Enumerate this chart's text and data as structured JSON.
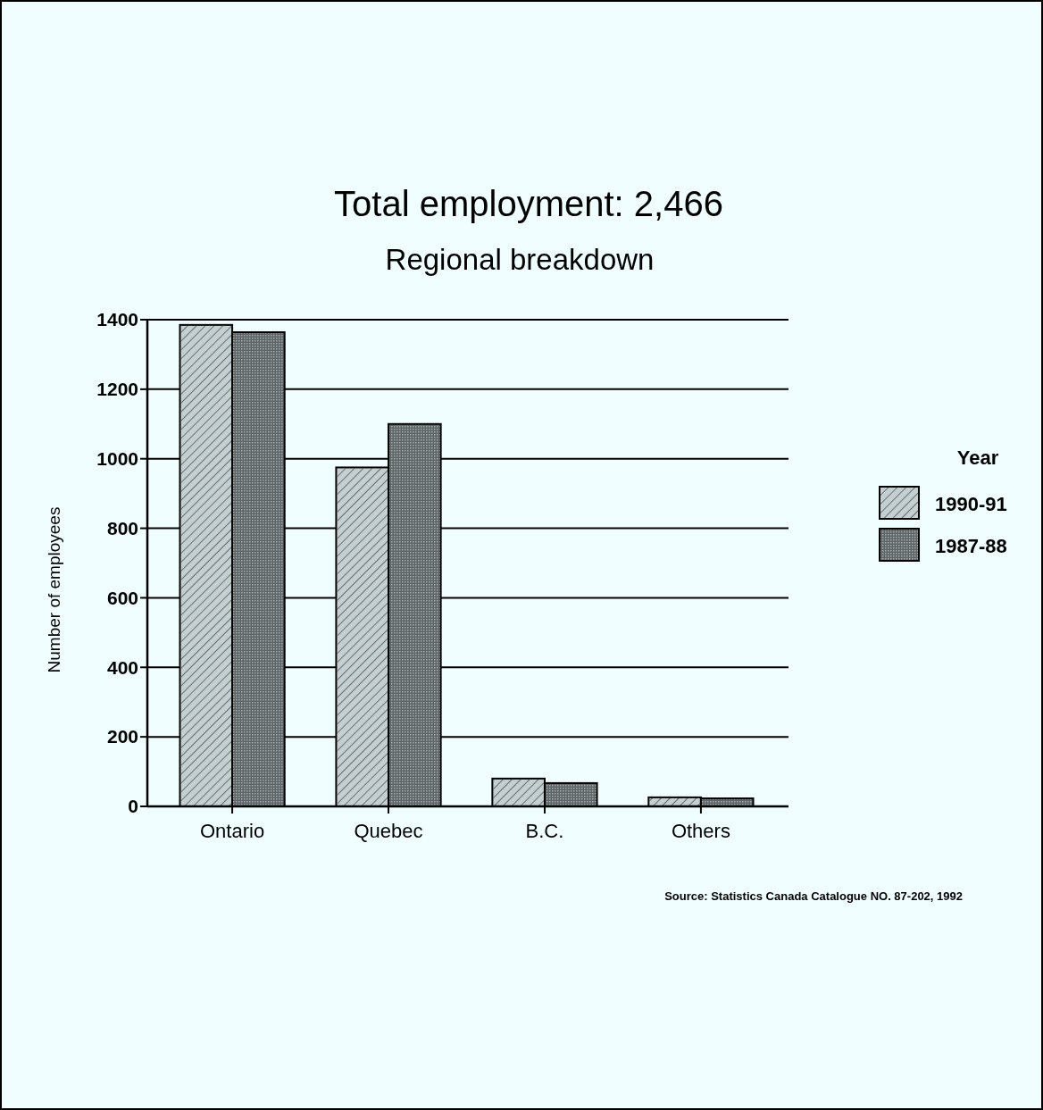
{
  "chart_data": {
    "type": "bar",
    "title": "Total employment: 2,466",
    "subtitle": "Regional breakdown",
    "ylabel": "Number of employees",
    "legend_title": "Year",
    "categories": [
      "Ontario",
      "Quebec",
      "B.C.",
      "Others"
    ],
    "series": [
      {
        "name": "1990-91",
        "color": "#c4cfd1",
        "values": [
          1385,
          975,
          80,
          26
        ]
      },
      {
        "name": "1987-88",
        "color": "#5f6566",
        "values": [
          1364,
          1100,
          67,
          23
        ]
      }
    ],
    "ylim": [
      0,
      1400
    ],
    "yticks": [
      0,
      200,
      400,
      600,
      800,
      1000,
      1200,
      1400
    ],
    "grid": "y",
    "legend": "right",
    "annotations": [
      "Source: Statistics Canada Catalogue NO. 87-202, 1992"
    ]
  }
}
